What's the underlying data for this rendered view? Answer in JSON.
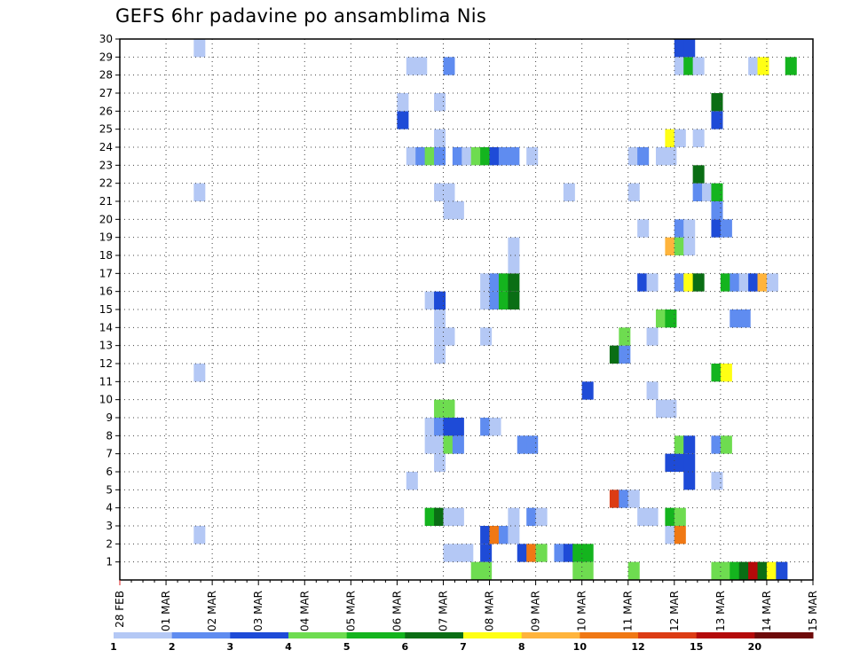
{
  "chart_data": {
    "type": "heatmap",
    "title": "GEFS 6hr padavine po ansamblima Nis",
    "x_labels": [
      "28 FEB",
      "01 MAR",
      "02 MAR",
      "03 MAR",
      "04 MAR",
      "05 MAR",
      "06 MAR",
      "07 MAR",
      "08 MAR",
      "09 MAR",
      "10 MAR",
      "11 MAR",
      "12 MAR",
      "13 MAR",
      "14 MAR",
      "15 MAR"
    ],
    "y_labels": [
      "1",
      "2",
      "3",
      "4",
      "5",
      "6",
      "7",
      "8",
      "9",
      "10",
      "11",
      "12",
      "13",
      "14",
      "15",
      "16",
      "17",
      "18",
      "19",
      "20",
      "21",
      "22",
      "23",
      "24",
      "25",
      "26",
      "27",
      "28",
      "29",
      "30"
    ],
    "ylim": [
      0,
      30
    ],
    "grid": true,
    "colorbar": {
      "labels": [
        "1",
        "2",
        "3",
        "4",
        "5",
        "6",
        "7",
        "8",
        "10",
        "12",
        "15",
        "20"
      ],
      "colors": [
        "#b4c8f5",
        "#5f8cf0",
        "#1e4bd7",
        "#6edc50",
        "#14b41e",
        "#0a6e14",
        "#ffff14",
        "#ffb43c",
        "#f07814",
        "#dc3c14",
        "#b40a0a",
        "#6e0a0a"
      ]
    },
    "cells": [
      [
        7.6,
        0,
        3
      ],
      [
        7.8,
        0,
        3
      ],
      [
        9.8,
        0,
        3
      ],
      [
        10.0,
        0,
        3
      ],
      [
        11.0,
        0,
        3
      ],
      [
        12.8,
        0,
        3
      ],
      [
        13.0,
        0,
        3
      ],
      [
        13.2,
        0,
        4
      ],
      [
        13.4,
        0,
        5
      ],
      [
        13.6,
        0,
        10
      ],
      [
        13.8,
        0,
        5
      ],
      [
        14.0,
        0,
        6
      ],
      [
        14.2,
        0,
        2
      ],
      [
        7.0,
        1,
        0
      ],
      [
        7.2,
        1,
        0
      ],
      [
        7.4,
        1,
        0
      ],
      [
        7.8,
        1,
        2
      ],
      [
        8.6,
        1,
        2
      ],
      [
        8.8,
        1,
        8
      ],
      [
        9.0,
        1,
        3
      ],
      [
        9.4,
        1,
        1
      ],
      [
        9.6,
        1,
        2
      ],
      [
        9.8,
        1,
        4
      ],
      [
        10.0,
        1,
        4
      ],
      [
        1.6,
        2,
        0
      ],
      [
        7.8,
        2,
        2
      ],
      [
        8.0,
        2,
        8
      ],
      [
        8.2,
        2,
        1
      ],
      [
        8.4,
        2,
        0
      ],
      [
        11.8,
        2,
        0
      ],
      [
        12.0,
        2,
        8
      ],
      [
        6.6,
        3,
        4
      ],
      [
        6.8,
        3,
        5
      ],
      [
        7.0,
        3,
        0
      ],
      [
        7.2,
        3,
        0
      ],
      [
        8.4,
        3,
        0
      ],
      [
        8.8,
        3,
        1
      ],
      [
        9.0,
        3,
        0
      ],
      [
        11.2,
        3,
        0
      ],
      [
        11.4,
        3,
        0
      ],
      [
        11.8,
        3,
        4
      ],
      [
        12.0,
        3,
        3
      ],
      [
        10.6,
        4,
        9
      ],
      [
        10.8,
        4,
        1
      ],
      [
        11.0,
        4,
        0
      ],
      [
        15.2,
        4,
        8
      ],
      [
        15.4,
        4,
        6
      ],
      [
        6.2,
        5,
        0
      ],
      [
        12.2,
        5,
        2
      ],
      [
        12.8,
        5,
        0
      ],
      [
        6.8,
        6,
        0
      ],
      [
        11.8,
        6,
        2
      ],
      [
        12.0,
        6,
        2
      ],
      [
        12.2,
        6,
        2
      ],
      [
        6.6,
        7,
        0
      ],
      [
        6.8,
        7,
        0
      ],
      [
        7.0,
        7,
        3
      ],
      [
        7.2,
        7,
        1
      ],
      [
        8.6,
        7,
        1
      ],
      [
        8.8,
        7,
        1
      ],
      [
        12.0,
        7,
        3
      ],
      [
        12.2,
        7,
        2
      ],
      [
        12.8,
        7,
        1
      ],
      [
        13.0,
        7,
        3
      ],
      [
        6.6,
        8,
        0
      ],
      [
        6.8,
        8,
        1
      ],
      [
        7.0,
        8,
        2
      ],
      [
        7.2,
        8,
        2
      ],
      [
        7.8,
        8,
        1
      ],
      [
        8.0,
        8,
        0
      ],
      [
        6.8,
        9,
        3
      ],
      [
        7.0,
        9,
        3
      ],
      [
        11.6,
        9,
        0
      ],
      [
        11.8,
        9,
        0
      ],
      [
        15.0,
        9,
        2
      ],
      [
        10.0,
        10,
        2
      ],
      [
        11.4,
        10,
        0
      ],
      [
        1.6,
        11,
        0
      ],
      [
        12.8,
        11,
        4
      ],
      [
        13.0,
        11,
        6
      ],
      [
        6.8,
        12,
        0
      ],
      [
        10.6,
        12,
        5
      ],
      [
        10.8,
        12,
        1
      ],
      [
        6.8,
        13,
        0
      ],
      [
        7.0,
        13,
        0
      ],
      [
        7.8,
        13,
        0
      ],
      [
        10.8,
        13,
        3
      ],
      [
        11.4,
        13,
        0
      ],
      [
        6.8,
        14,
        0
      ],
      [
        11.6,
        14,
        3
      ],
      [
        11.8,
        14,
        4
      ],
      [
        13.2,
        14,
        1
      ],
      [
        13.4,
        14,
        1
      ],
      [
        6.6,
        15,
        0
      ],
      [
        6.8,
        15,
        2
      ],
      [
        7.8,
        15,
        0
      ],
      [
        8.0,
        15,
        1
      ],
      [
        8.2,
        15,
        4
      ],
      [
        8.4,
        15,
        5
      ],
      [
        7.8,
        16,
        0
      ],
      [
        8.0,
        16,
        1
      ],
      [
        8.2,
        16,
        4
      ],
      [
        8.4,
        16,
        5
      ],
      [
        11.2,
        16,
        2
      ],
      [
        11.4,
        16,
        0
      ],
      [
        12.0,
        16,
        1
      ],
      [
        12.2,
        16,
        6
      ],
      [
        12.4,
        16,
        5
      ],
      [
        13.0,
        16,
        4
      ],
      [
        13.2,
        16,
        1
      ],
      [
        13.4,
        16,
        0
      ],
      [
        13.6,
        16,
        2
      ],
      [
        13.8,
        16,
        7
      ],
      [
        14.0,
        16,
        0
      ],
      [
        8.4,
        17,
        0
      ],
      [
        15.0,
        17,
        1
      ],
      [
        15.2,
        17,
        1
      ],
      [
        8.4,
        18,
        0
      ],
      [
        11.8,
        18,
        7
      ],
      [
        12.0,
        18,
        3
      ],
      [
        12.2,
        18,
        0
      ],
      [
        11.2,
        19,
        0
      ],
      [
        12.0,
        19,
        1
      ],
      [
        12.2,
        19,
        0
      ],
      [
        12.8,
        19,
        2
      ],
      [
        13.0,
        19,
        1
      ],
      [
        7.0,
        20,
        0
      ],
      [
        7.2,
        20,
        0
      ],
      [
        12.8,
        20,
        1
      ],
      [
        1.6,
        21,
        0
      ],
      [
        6.8,
        21,
        0
      ],
      [
        7.0,
        21,
        0
      ],
      [
        9.6,
        21,
        0
      ],
      [
        11.0,
        21,
        0
      ],
      [
        12.4,
        21,
        1
      ],
      [
        12.6,
        21,
        0
      ],
      [
        12.8,
        21,
        4
      ],
      [
        12.4,
        22,
        5
      ],
      [
        6.2,
        23,
        0
      ],
      [
        6.4,
        23,
        1
      ],
      [
        6.6,
        23,
        3
      ],
      [
        6.8,
        23,
        1
      ],
      [
        7.2,
        23,
        1
      ],
      [
        7.4,
        23,
        0
      ],
      [
        7.6,
        23,
        3
      ],
      [
        7.8,
        23,
        4
      ],
      [
        8.0,
        23,
        2
      ],
      [
        8.2,
        23,
        1
      ],
      [
        8.4,
        23,
        1
      ],
      [
        8.8,
        23,
        0
      ],
      [
        11.0,
        23,
        0
      ],
      [
        11.2,
        23,
        1
      ],
      [
        11.6,
        23,
        0
      ],
      [
        11.8,
        23,
        0
      ],
      [
        15.2,
        23,
        0
      ],
      [
        6.8,
        24,
        0
      ],
      [
        11.8,
        24,
        6
      ],
      [
        12.0,
        24,
        0
      ],
      [
        12.4,
        24,
        0
      ],
      [
        15.4,
        24,
        0
      ],
      [
        6.0,
        25,
        2
      ],
      [
        12.8,
        25,
        2
      ],
      [
        15.4,
        25,
        1
      ],
      [
        6.0,
        26,
        0
      ],
      [
        6.8,
        26,
        0
      ],
      [
        12.8,
        26,
        5
      ],
      [
        6.2,
        28,
        0
      ],
      [
        6.4,
        28,
        0
      ],
      [
        7.0,
        28,
        1
      ],
      [
        12.0,
        28,
        0
      ],
      [
        12.2,
        28,
        4
      ],
      [
        12.4,
        28,
        0
      ],
      [
        13.6,
        28,
        0
      ],
      [
        13.8,
        28,
        6
      ],
      [
        14.4,
        28,
        4
      ],
      [
        1.6,
        29,
        0
      ],
      [
        12.0,
        29,
        2
      ],
      [
        12.2,
        29,
        2
      ]
    ]
  }
}
